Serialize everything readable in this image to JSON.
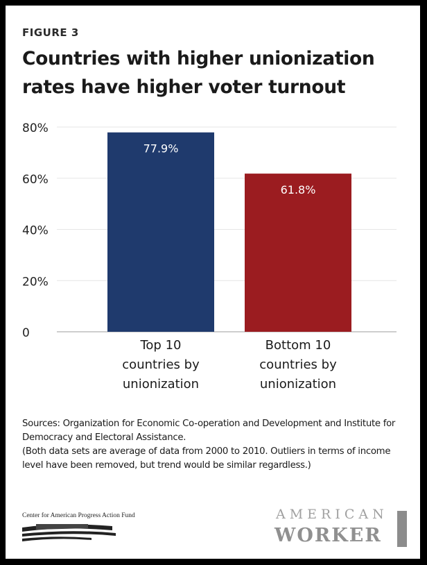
{
  "figure_label": "FIGURE 3",
  "title": "Countries with higher unionization rates have higher voter turnout",
  "chart_data": {
    "type": "bar",
    "categories": [
      [
        "Top 10",
        "countries by",
        "unionization"
      ],
      [
        "Bottom 10",
        "countries by",
        "unionization"
      ]
    ],
    "values": [
      77.9,
      61.8
    ],
    "data_labels": [
      "77.9%",
      "61.8%"
    ],
    "colors": [
      "#1f3a6d",
      "#9b1c20"
    ],
    "ylim": [
      0,
      80
    ],
    "yticks": [
      0,
      20,
      40,
      60,
      80
    ],
    "ytick_labels": [
      "0",
      "20%",
      "40%",
      "60%",
      "80%"
    ],
    "grid": true
  },
  "sources": [
    "Sources: Organization for Economic Co-operation and Development and Institute for Democracy and Electoral Assistance.",
    "(Both data sets are average of data from 2000 to 2010. Outliers in terms of income level have been removed, but trend would be similar regardless.)"
  ],
  "logos": {
    "cap": "Center for American Progress Action Fund",
    "aw_top": "AMERICAN",
    "aw_bottom": "WORKER"
  }
}
